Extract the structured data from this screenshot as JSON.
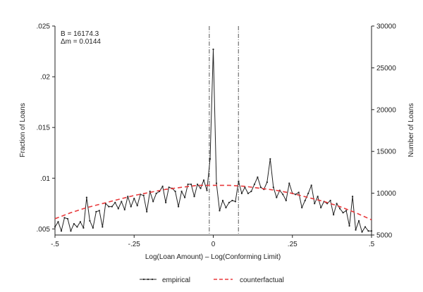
{
  "chart_data": {
    "type": "line",
    "xlabel": "Log(Loan Amount) – Log(Conforming Limit)",
    "ylabel": "Fraction of Loans",
    "ylabel_right": "Number of Loans",
    "xlim": [
      -0.5,
      0.5
    ],
    "ylim": [
      0.0044,
      0.025
    ],
    "ylim_right": [
      5000,
      30000
    ],
    "x_ticks": [
      -0.5,
      -0.25,
      0,
      0.25,
      0.5
    ],
    "x_tick_labels": [
      "-.5",
      "-.25",
      "0",
      ".25",
      ".5"
    ],
    "y_ticks": [
      0.005,
      0.01,
      0.015,
      0.02,
      0.025
    ],
    "y_tick_labels": [
      ".005",
      ".01",
      ".015",
      ".02",
      ".025"
    ],
    "y_right_ticks": [
      5000,
      10000,
      15000,
      20000,
      25000,
      30000
    ],
    "y_right_tick_labels": [
      "5000",
      "10000",
      "15000",
      "20000",
      "25000",
      "30000"
    ],
    "vlines": [
      -0.0125,
      0.0795
    ],
    "annotations": [
      "B = 16174.3",
      "Δm = 0.0144"
    ],
    "legend_position": "bottom",
    "grid": false,
    "series": [
      {
        "name": "empirical",
        "color": "#222222",
        "style": "solid-markers",
        "x": [
          -0.5,
          -0.49,
          -0.48,
          -0.47,
          -0.46,
          -0.45,
          -0.44,
          -0.43,
          -0.42,
          -0.41,
          -0.4,
          -0.39,
          -0.38,
          -0.37,
          -0.36,
          -0.35,
          -0.34,
          -0.33,
          -0.32,
          -0.31,
          -0.3,
          -0.29,
          -0.28,
          -0.27,
          -0.26,
          -0.25,
          -0.24,
          -0.23,
          -0.22,
          -0.21,
          -0.2,
          -0.19,
          -0.18,
          -0.17,
          -0.16,
          -0.15,
          -0.14,
          -0.13,
          -0.12,
          -0.11,
          -0.1,
          -0.09,
          -0.08,
          -0.07,
          -0.06,
          -0.05,
          -0.04,
          -0.03,
          -0.02,
          -0.01,
          0,
          0.01,
          0.02,
          0.03,
          0.04,
          0.05,
          0.06,
          0.07,
          0.08,
          0.09,
          0.1,
          0.11,
          0.12,
          0.13,
          0.14,
          0.15,
          0.16,
          0.17,
          0.18,
          0.19,
          0.2,
          0.21,
          0.22,
          0.23,
          0.24,
          0.25,
          0.26,
          0.27,
          0.28,
          0.29,
          0.3,
          0.31,
          0.32,
          0.33,
          0.34,
          0.35,
          0.36,
          0.37,
          0.38,
          0.39,
          0.4,
          0.41,
          0.42,
          0.43,
          0.44,
          0.45,
          0.46,
          0.47,
          0.48,
          0.49,
          0.5
        ],
        "y": [
          0.0052,
          0.0057,
          0.0048,
          0.0061,
          0.006,
          0.0048,
          0.0055,
          0.0052,
          0.0057,
          0.0051,
          0.0081,
          0.0058,
          0.0051,
          0.0067,
          0.0068,
          0.0052,
          0.0075,
          0.0072,
          0.0072,
          0.0076,
          0.007,
          0.0077,
          0.0069,
          0.0082,
          0.0072,
          0.008,
          0.0073,
          0.0084,
          0.0083,
          0.0067,
          0.0087,
          0.0077,
          0.0085,
          0.0087,
          0.0092,
          0.0076,
          0.0091,
          0.009,
          0.0087,
          0.0072,
          0.0087,
          0.0081,
          0.0094,
          0.0094,
          0.0082,
          0.0094,
          0.009,
          0.0098,
          0.0088,
          0.0119,
          0.0227,
          0.0095,
          0.0068,
          0.0078,
          0.0071,
          0.0076,
          0.0078,
          0.0077,
          0.0097,
          0.0085,
          0.0091,
          0.0085,
          0.0087,
          0.0094,
          0.0101,
          0.0091,
          0.0089,
          0.0096,
          0.0119,
          0.0091,
          0.0081,
          0.0088,
          0.0084,
          0.0078,
          0.0095,
          0.0085,
          0.0084,
          0.0086,
          0.0071,
          0.0078,
          0.0085,
          0.0093,
          0.0075,
          0.0082,
          0.0071,
          0.0077,
          0.0075,
          0.0078,
          0.0064,
          0.0075,
          0.007,
          0.0066,
          0.0068,
          0.0053,
          0.0082,
          0.0049,
          0.0058,
          0.0047,
          0.0052,
          0.0048,
          0.0048
        ]
      },
      {
        "name": "counterfactual",
        "color": "#e8393b",
        "style": "dashed",
        "x": [
          -0.5,
          -0.45,
          -0.4,
          -0.35,
          -0.3,
          -0.25,
          -0.2,
          -0.15,
          -0.1,
          -0.05,
          0,
          0.05,
          0.1,
          0.15,
          0.2,
          0.25,
          0.3,
          0.35,
          0.4,
          0.45,
          0.5
        ],
        "y": [
          0.006,
          0.0066,
          0.0071,
          0.0075,
          0.0079,
          0.0083,
          0.0086,
          0.0089,
          0.0091,
          0.0093,
          0.0093,
          0.0093,
          0.0092,
          0.009,
          0.0088,
          0.0085,
          0.0081,
          0.0077,
          0.0072,
          0.0066,
          0.0059
        ]
      }
    ]
  },
  "legend": {
    "empirical_label": "empirical",
    "counterfactual_label": "counterfactual"
  }
}
